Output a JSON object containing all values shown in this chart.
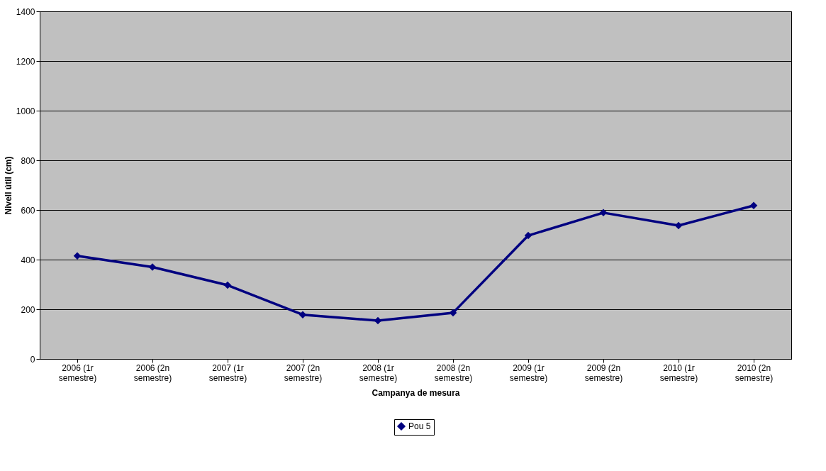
{
  "chart_data": {
    "type": "line",
    "xlabel": "Campanya de mesura",
    "ylabel": "Nivell útil (cm)",
    "categories": [
      "2006 (1r semestre)",
      "2006 (2n semestre)",
      "2007 (1r semestre)",
      "2007 (2n semestre)",
      "2008 (1r semestre)",
      "2008 (2n semestre)",
      "2009 (1r semestre)",
      "2009 (2n semestre)",
      "2010 (1r semestre)",
      "2010 (2n semestre)"
    ],
    "series": [
      {
        "name": "Pou 5",
        "color": "#000080",
        "values": [
          415,
          370,
          297,
          178,
          154,
          186,
          497,
          589,
          537,
          618
        ]
      }
    ],
    "ylim": [
      0,
      1400
    ],
    "yticks": [
      0,
      200,
      400,
      600,
      800,
      1000,
      1200,
      1400
    ],
    "grid": "y",
    "legend": "bottom",
    "marker": "diamond",
    "line_style": "solid"
  }
}
